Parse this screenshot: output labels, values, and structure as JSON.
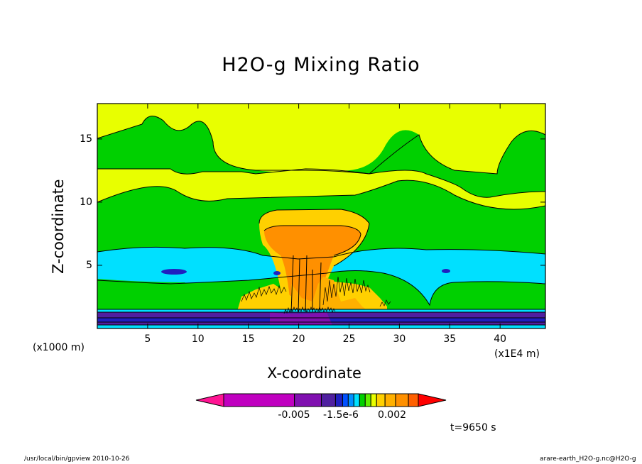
{
  "chart_data": {
    "type": "heatmap",
    "title": "H2O-g Mixing Ratio",
    "xlabel": "X-coordinate",
    "ylabel": "Z-coordinate",
    "x_unit_label": "(x1000 m)",
    "x_scale_label": "(x1E4 m)",
    "xlim": [
      0,
      44.5
    ],
    "ylim": [
      0,
      17.8
    ],
    "x_ticks": [
      5,
      10,
      15,
      20,
      25,
      30,
      35,
      40
    ],
    "y_ticks": [
      5,
      10,
      15
    ],
    "colorbar": {
      "colors": [
        "#ff1493",
        "#c000c0",
        "#8010b0",
        "#5020a0",
        "#2020c0",
        "#0050ff",
        "#0090ff",
        "#00e0ff",
        "#00d000",
        "#60f000",
        "#e8ff00",
        "#ffd000",
        "#ffb000",
        "#ff9000",
        "#ff6000",
        "#ff0000"
      ],
      "tick_labels": [
        "-0.005",
        "-1.5e-6",
        "0.002"
      ]
    },
    "regions": [
      {
        "name": "surface-layer",
        "color": "#5020a0",
        "z_range": [
          0,
          1.5
        ]
      },
      {
        "name": "lower-green-band",
        "color": "#00d000",
        "z_range": [
          1.5,
          3.7
        ]
      },
      {
        "name": "cyan-band",
        "color": "#00e0ff",
        "z_range": [
          3.7,
          6
        ]
      },
      {
        "name": "mid-green-band",
        "color": "#00d000",
        "z_range": [
          6,
          12
        ]
      },
      {
        "name": "yellow-upper-band",
        "color": "#e8ff00",
        "z_range": [
          10.5,
          12.5
        ]
      },
      {
        "name": "top-band",
        "color": "#e8ff00",
        "z_range": [
          12.5,
          17.8
        ]
      },
      {
        "name": "convective-anvil",
        "color": "#ff9000",
        "x_center": 21.5,
        "z_range": [
          2,
          9
        ]
      }
    ],
    "annotation": "t=9650 s",
    "grid": false,
    "legend": "colorbar-bottom"
  },
  "footer": {
    "left": "/usr/local/bin/gpview  2010-10-26",
    "right": "arare-earth_H2O-g.nc@H2O-g"
  }
}
